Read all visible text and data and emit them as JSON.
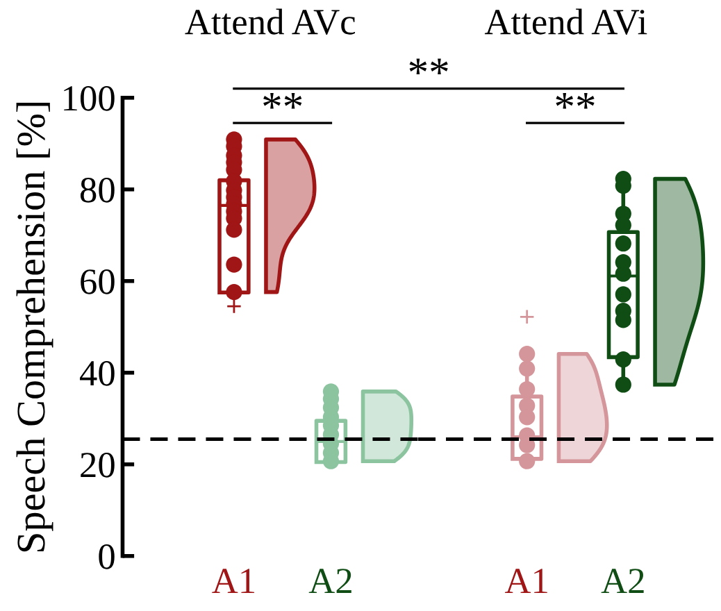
{
  "chart_data": [
    {
      "type": "box",
      "title": "Attend AVc",
      "ylabel": "Speech Comprehension [%]",
      "categories": [
        "A1",
        "A2"
      ],
      "colors": [
        "#a01515",
        "#8cc4a0"
      ],
      "boxes": [
        {
          "low": 57,
          "q1": 57.5,
          "median": 76.5,
          "q3": 82,
          "high": 91,
          "outliers": [
            54.5
          ]
        },
        {
          "low": 20.5,
          "q1": 20.5,
          "median": 25,
          "q3": 29.5,
          "high": 36
        }
      ],
      "series": [
        {
          "type": "scatter",
          "color": "#a01515",
          "x": [
            "A1",
            "A1",
            "A1",
            "A1",
            "A1",
            "A1",
            "A1",
            "A1",
            "A1",
            "A1",
            "A1",
            "A1",
            "A1",
            "A1",
            "A1"
          ],
          "values": [
            90.9,
            89.4,
            87.4,
            85.9,
            84.3,
            81.8,
            79.8,
            78.3,
            76.8,
            75.2,
            73.7,
            71.2,
            63.6,
            null,
            57.6
          ]
        },
        {
          "type": "scatter",
          "color": "#8cc4a0",
          "x": [
            "A2",
            "A2",
            "A2",
            "A2",
            "A2",
            "A2",
            "A2",
            "A2",
            "A2"
          ],
          "values": [
            35.9,
            34.3,
            32.4,
            30.3,
            28.5,
            26.5,
            24.5,
            22.5,
            20.7
          ]
        }
      ],
      "ylim": [
        0,
        100
      ],
      "yticks": [
        0,
        20,
        40,
        60,
        80,
        100
      ],
      "ref_lines": [
        {
          "axis": "y",
          "value": 25.5,
          "color": "#000000",
          "line_style": "dashed"
        }
      ],
      "annotations": [
        "**",
        "**"
      ],
      "grid": false,
      "legend": false,
      "marker": "circle"
    },
    {
      "type": "box",
      "title": "Attend AVi",
      "categories": [
        "A1",
        "A2"
      ],
      "colors": [
        "#d4969a",
        "#0f4d14"
      ],
      "boxes": [
        {
          "low": 21,
          "q1": 21.2,
          "median": 26,
          "q3": 34.8,
          "high": 44,
          "outliers": [
            52.2
          ]
        },
        {
          "low": 37.4,
          "q1": 43.4,
          "median": 61.1,
          "q3": 70.7,
          "high": 82.3
        }
      ],
      "series": [
        {
          "type": "scatter",
          "color": "#d4969a",
          "x": [
            "A1",
            "A1",
            "A1",
            "A1",
            "A1",
            "A1",
            "A1",
            "A1",
            "A1"
          ],
          "values": [
            44.1,
            40.9,
            36.4,
            32.8,
            30.3,
            26.3,
            24.2,
            null,
            20.7
          ]
        },
        {
          "type": "scatter",
          "color": "#0f4d14",
          "x": [
            "A2",
            "A2",
            "A2",
            "A2",
            "A2",
            "A2",
            "A2",
            "A2",
            "A2",
            "A2",
            "A2",
            "A2"
          ],
          "values": [
            82.3,
            80.8,
            74.7,
            72.2,
            68.2,
            64.1,
            61.6,
            57.1,
            53.5,
            51.5,
            42.9,
            37.4
          ]
        }
      ],
      "ylim": [
        0,
        100
      ],
      "tick_labels": "x",
      "ref_lines": [
        {
          "axis": "y",
          "value": 25.5,
          "color": "#000000",
          "line_style": "dashed"
        }
      ],
      "annotations": [
        "**"
      ],
      "grid": false,
      "legend": false,
      "marker": "circle"
    }
  ]
}
